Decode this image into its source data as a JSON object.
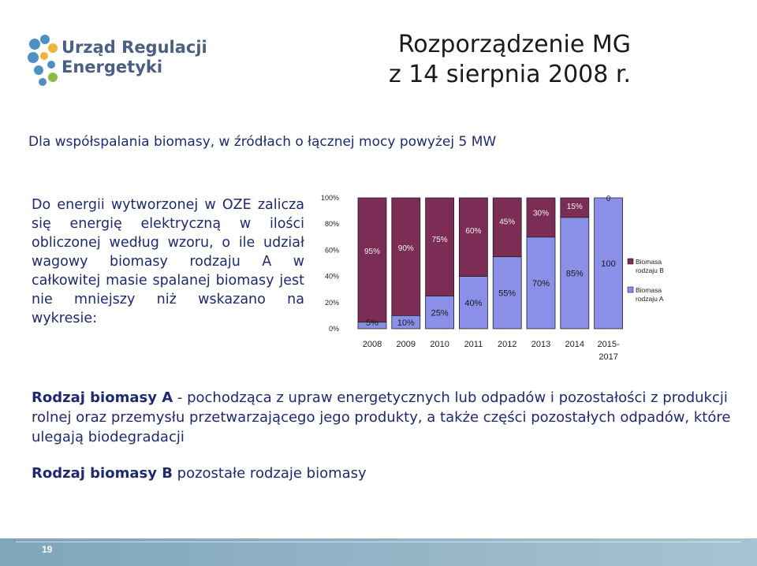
{
  "header": {
    "logo_line1": "Urząd Regulacji",
    "logo_line2": "Energetyki",
    "title_line1": "Rozporządzenie MG",
    "title_line2": "z 14 sierpnia 2008 r."
  },
  "subtitle": "Dla współspalania biomasy, w źródłach o łącznej mocy powyżej 5 MW",
  "left_paragraph": "Do energii wytworzonej w OZE zalicza się energię elektryczną w ilości obliczonej według wzoru, o ile udział wagowy biomasy rodzaju A w całkowitej masie spalanej biomasy jest nie mniejszy niż wskazano na wykresie:",
  "definitions": {
    "a_term": "Rodzaj biomasy A",
    "a_text": " - pochodząca z upraw energetycznych lub odpadów i pozostałości z produkcji rolnej oraz przemysłu przetwarzającego jego produkty, a także części pozostałych odpadów, które ulegają biodegradacji",
    "b_term": "Rodzaj biomasy B",
    "b_text": " pozostałe rodzaje biomasy"
  },
  "footer": {
    "page_number": "19"
  },
  "colors": {
    "series_b": "#7b2d55",
    "series_a": "#8a8fe8",
    "text_blue": "#1f2a6e",
    "footer_teal": "#6d97ad"
  },
  "chart_data": {
    "type": "bar",
    "stacked": true,
    "categories": [
      "2008",
      "2009",
      "2010",
      "2011",
      "2012",
      "2013",
      "2014",
      "2015-2017"
    ],
    "series": [
      {
        "name": "Biomasa rodzaju A",
        "values": [
          5,
          10,
          25,
          40,
          55,
          70,
          85,
          100
        ],
        "labels": [
          "5%",
          "10%",
          "25%",
          "40%",
          "55%",
          "70%",
          "85%",
          "100"
        ]
      },
      {
        "name": "Biomasa rodzaju B",
        "values": [
          95,
          90,
          75,
          60,
          45,
          30,
          15,
          0
        ],
        "labels": [
          "95%",
          "90%",
          "75%",
          "60%",
          "45%",
          "30%",
          "15%",
          "0"
        ]
      }
    ],
    "yticks": [
      "0%",
      "20%",
      "40%",
      "60%",
      "80%",
      "100%"
    ],
    "ylim": [
      0,
      100
    ],
    "legend": [
      "Biomasa rodzaju B",
      "Biomasa rodzaju A"
    ],
    "legend_position": "right"
  }
}
